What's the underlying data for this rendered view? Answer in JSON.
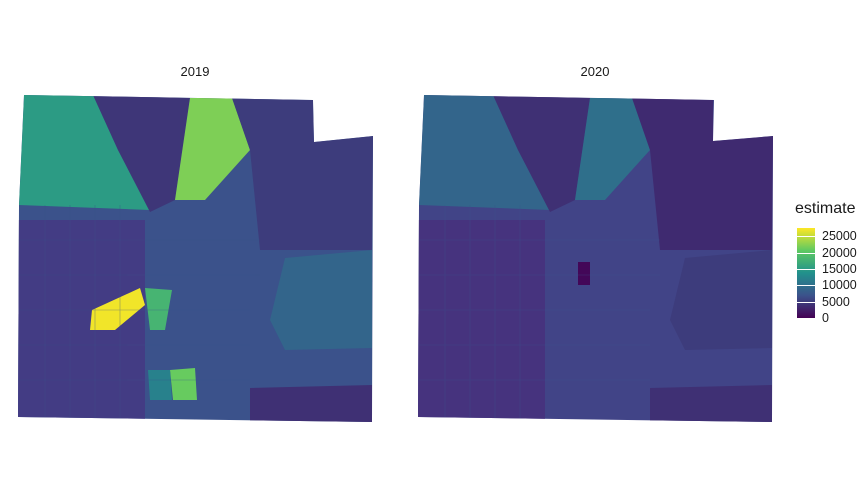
{
  "panels": [
    {
      "year": "2019"
    },
    {
      "year": "2020"
    }
  ],
  "legend": {
    "title": "estimate",
    "min": 0,
    "max": 27500,
    "breaks": [
      {
        "label": "25000",
        "value": 25000
      },
      {
        "label": "20000",
        "value": 20000
      },
      {
        "label": "15000",
        "value": 15000
      },
      {
        "label": "10000",
        "value": 10000
      },
      {
        "label": "5000",
        "value": 5000
      },
      {
        "label": "0",
        "value": 0
      }
    ],
    "colors": [
      "#440154",
      "#3b528b",
      "#21918c",
      "#5ec962",
      "#fde725"
    ]
  },
  "regions_2019": {
    "northwest": 15000,
    "north_center": 4500,
    "north_right": 22000,
    "northeast": 5000,
    "east_large": 9000,
    "center_yellow": 27000,
    "center_green": 18000,
    "south_green": 21000,
    "south_teal": 12000,
    "southeast": 4000
  },
  "regions_2020": {
    "northwest": 9000,
    "north_center": 4000,
    "north_right": 10000,
    "northeast": 3500,
    "east_large": 5000,
    "center_dark": 500,
    "southeast": 4000
  }
}
